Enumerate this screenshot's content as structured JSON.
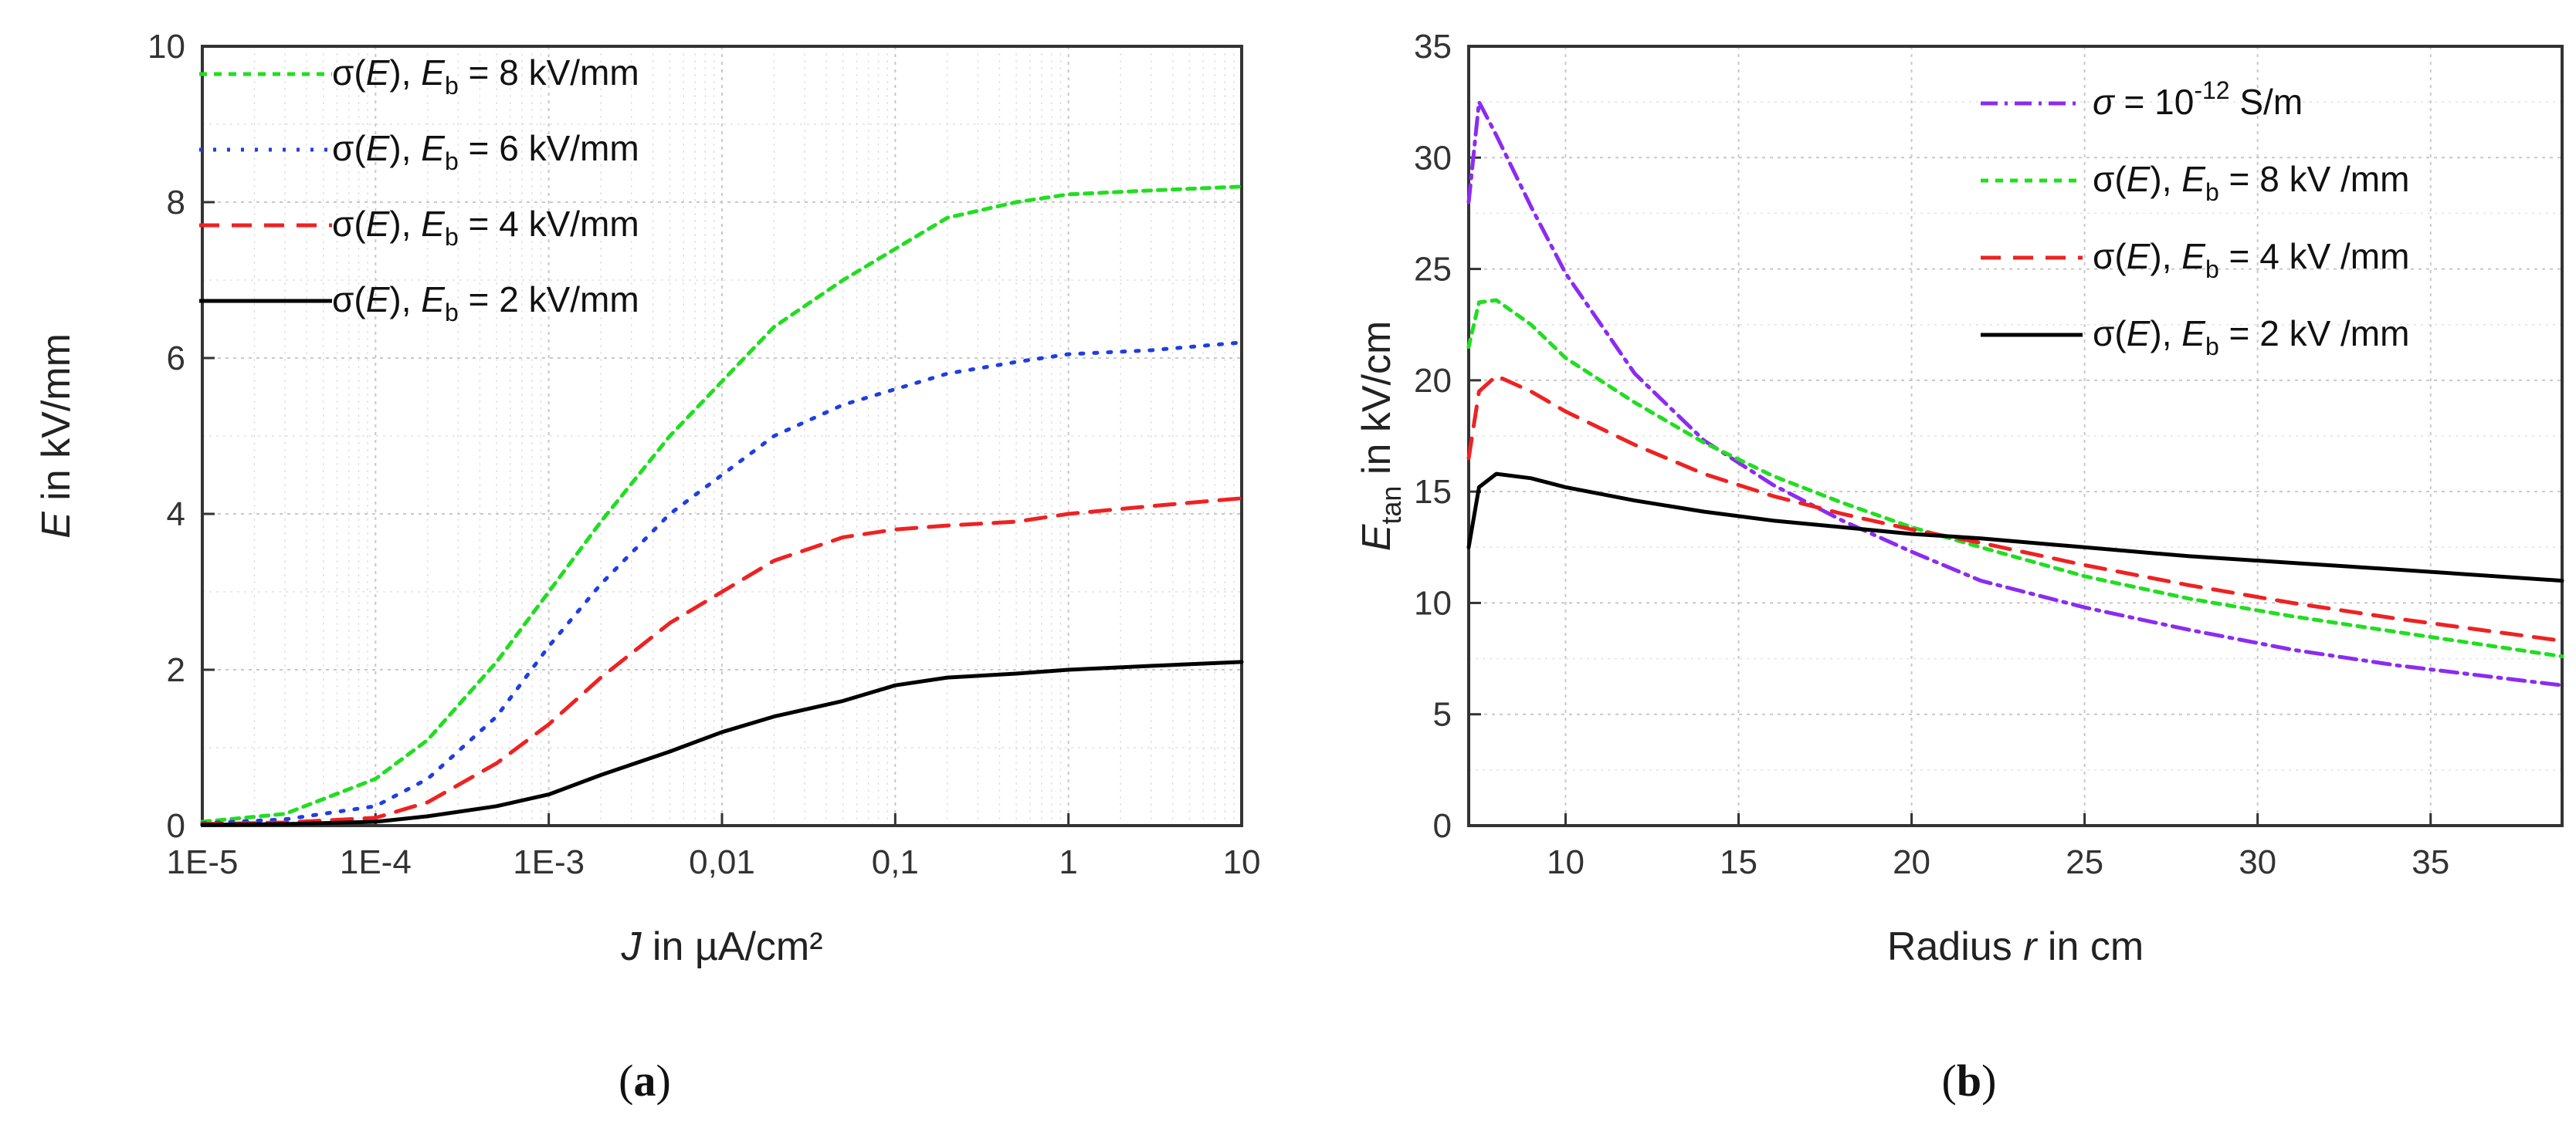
{
  "chart_data": [
    {
      "type": "line",
      "panel": "a",
      "panel_label": "(a)",
      "xscale": "log",
      "xlabel": "J in µA/cm²",
      "ylabel": "E in kV/mm",
      "xlim": [
        1e-05,
        10
      ],
      "ylim": [
        0,
        10
      ],
      "xticks": [
        1e-05,
        0.0001,
        0.001,
        0.01,
        0.1,
        1,
        10
      ],
      "xtick_labels": [
        "1E-5",
        "1E-4",
        "1E-3",
        "0,01",
        "0,1",
        "1",
        "10"
      ],
      "yticks": [
        0,
        2,
        4,
        6,
        8,
        10
      ],
      "ytick_labels": [
        "0",
        "2",
        "4",
        "6",
        "8",
        "10"
      ],
      "grid": true,
      "legend_position": "top-left",
      "series": [
        {
          "name": "σ(E), Eb = 8 kV/mm",
          "legend": {
            "pre": "σ(",
            "var": "E",
            "mid": "), ",
            "var2": "E",
            "sub": "b",
            "post": " = 8 kV/mm"
          },
          "color": "#22dd22",
          "dash": "green-dash",
          "x": [
            1e-05,
            3e-05,
            0.0001,
            0.0002,
            0.0005,
            0.001,
            0.002,
            0.005,
            0.01,
            0.02,
            0.05,
            0.1,
            0.2,
            0.5,
            1,
            3,
            10
          ],
          "y": [
            0.05,
            0.15,
            0.6,
            1.1,
            2.1,
            3.0,
            3.9,
            5.0,
            5.7,
            6.4,
            7.0,
            7.4,
            7.8,
            8.0,
            8.1,
            8.15,
            8.2
          ]
        },
        {
          "name": "σ(E), Eb = 6 kV/mm",
          "legend": {
            "pre": "σ(",
            "var": "E",
            "mid": "), ",
            "var2": "E",
            "sub": "b",
            "post": " = 6 kV/mm"
          },
          "color": "#1f3ee0",
          "dash": "blue-dot",
          "x": [
            1e-05,
            3e-05,
            0.0001,
            0.0002,
            0.0005,
            0.001,
            0.002,
            0.005,
            0.01,
            0.02,
            0.05,
            0.1,
            0.2,
            0.5,
            1,
            3,
            10
          ],
          "y": [
            0.03,
            0.08,
            0.25,
            0.6,
            1.4,
            2.3,
            3.1,
            4.0,
            4.5,
            5.0,
            5.4,
            5.6,
            5.8,
            5.95,
            6.05,
            6.1,
            6.2
          ]
        },
        {
          "name": "σ(E), Eb = 4 kV/mm",
          "legend": {
            "pre": "σ(",
            "var": "E",
            "mid": "), ",
            "var2": "E",
            "sub": "b",
            "post": " = 4 kV/mm"
          },
          "color": "#ee2222",
          "dash": "red-dash",
          "x": [
            1e-05,
            3e-05,
            0.0001,
            0.0002,
            0.0005,
            0.001,
            0.002,
            0.005,
            0.01,
            0.02,
            0.05,
            0.1,
            0.2,
            0.5,
            1,
            3,
            10
          ],
          "y": [
            0.02,
            0.04,
            0.1,
            0.3,
            0.8,
            1.3,
            1.9,
            2.6,
            3.0,
            3.4,
            3.7,
            3.8,
            3.85,
            3.9,
            4.0,
            4.1,
            4.2
          ]
        },
        {
          "name": "σ(E), Eb = 2 kV/mm",
          "legend": {
            "pre": "σ(",
            "var": "E",
            "mid": "), ",
            "var2": "E",
            "sub": "b",
            "post": " = 2 kV/mm"
          },
          "color": "#000000",
          "dash": "solid",
          "x": [
            1e-05,
            3e-05,
            0.0001,
            0.0002,
            0.0005,
            0.001,
            0.002,
            0.005,
            0.01,
            0.02,
            0.05,
            0.1,
            0.2,
            0.5,
            1,
            3,
            10
          ],
          "y": [
            0.01,
            0.02,
            0.05,
            0.12,
            0.25,
            0.4,
            0.65,
            0.95,
            1.2,
            1.4,
            1.6,
            1.8,
            1.9,
            1.95,
            2.0,
            2.05,
            2.1
          ]
        }
      ]
    },
    {
      "type": "line",
      "panel": "b",
      "panel_label": "(b)",
      "xscale": "linear",
      "xlabel": {
        "pre": "Radius ",
        "var": "r",
        "post": " in cm"
      },
      "ylabel": {
        "var": "E",
        "sub": "tan",
        "post": " in kV/cm"
      },
      "xlim": [
        7.2,
        38.8
      ],
      "ylim": [
        0,
        35
      ],
      "xticks": [
        10,
        15,
        20,
        25,
        30,
        35
      ],
      "xtick_labels": [
        "10",
        "15",
        "20",
        "25",
        "30",
        "35"
      ],
      "yticks": [
        0,
        5,
        10,
        15,
        20,
        25,
        30,
        35
      ],
      "ytick_labels": [
        "0",
        "5",
        "10",
        "15",
        "20",
        "25",
        "30",
        "35"
      ],
      "grid": true,
      "legend_position": "top-right",
      "series": [
        {
          "name": "σ = 10-12 S/m",
          "legend": {
            "sigma": "σ",
            "eq": " = 10",
            "sup": "-12",
            "post": " S/m"
          },
          "color": "#8b2cf0",
          "dash": "purple-dashdot",
          "x": [
            7.2,
            7.5,
            8.0,
            9.0,
            10.0,
            12.0,
            14.0,
            16.0,
            18.0,
            20.0,
            22.0,
            25.0,
            28.0,
            31.0,
            34.0,
            38.8
          ],
          "y": [
            28.0,
            32.5,
            31.0,
            27.8,
            24.8,
            20.3,
            17.3,
            15.3,
            13.7,
            12.3,
            11.0,
            9.8,
            8.8,
            7.9,
            7.2,
            6.3
          ]
        },
        {
          "name": "σ(E), Eb = 8 kV /mm",
          "legend": {
            "pre": "σ(",
            "var": "E",
            "mid": "), ",
            "var2": "E",
            "sub": "b",
            "post": " = 8 kV /mm"
          },
          "color": "#22dd22",
          "dash": "green-dash",
          "x": [
            7.2,
            7.5,
            8.0,
            9.0,
            10.0,
            12.0,
            14.0,
            16.0,
            18.0,
            20.0,
            22.0,
            25.0,
            28.0,
            31.0,
            34.0,
            38.8
          ],
          "y": [
            21.5,
            23.5,
            23.6,
            22.5,
            21.0,
            19.0,
            17.2,
            15.7,
            14.5,
            13.4,
            12.5,
            11.2,
            10.2,
            9.4,
            8.7,
            7.6
          ]
        },
        {
          "name": "σ(E), Eb = 4 kV /mm",
          "legend": {
            "pre": "σ(",
            "var": "E",
            "mid": "), ",
            "var2": "E",
            "sub": "b",
            "post": " = 4 kV /mm"
          },
          "color": "#ee2222",
          "dash": "red-dash",
          "x": [
            7.2,
            7.5,
            8.0,
            9.0,
            10.0,
            12.0,
            14.0,
            16.0,
            18.0,
            20.0,
            22.0,
            25.0,
            28.0,
            31.0,
            34.0,
            38.8
          ],
          "y": [
            16.5,
            19.5,
            20.2,
            19.5,
            18.6,
            17.1,
            15.8,
            14.8,
            14.0,
            13.3,
            12.7,
            11.7,
            10.8,
            10.0,
            9.3,
            8.3
          ]
        },
        {
          "name": "σ(E), Eb = 2 kV /mm",
          "legend": {
            "pre": "σ(",
            "var": "E",
            "mid": "), ",
            "var2": "E",
            "sub": "b",
            "post": " = 2 kV /mm"
          },
          "color": "#000000",
          "dash": "solid",
          "x": [
            7.2,
            7.5,
            8.0,
            9.0,
            10.0,
            12.0,
            14.0,
            16.0,
            18.0,
            20.0,
            22.0,
            25.0,
            28.0,
            31.0,
            34.0,
            38.8
          ],
          "y": [
            12.5,
            15.2,
            15.8,
            15.6,
            15.2,
            14.6,
            14.1,
            13.7,
            13.4,
            13.1,
            12.9,
            12.5,
            12.1,
            11.8,
            11.5,
            11.0
          ]
        }
      ]
    }
  ]
}
